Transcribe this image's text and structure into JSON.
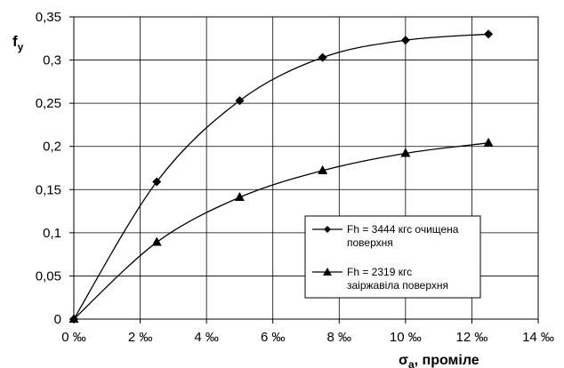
{
  "chart_data": {
    "type": "line",
    "x_tick_labels": [
      "0 ‰",
      "2 ‰",
      "4 ‰",
      "6 ‰",
      "8 ‰",
      "10 ‰",
      "12 ‰",
      "14 ‰"
    ],
    "y_tick_labels": [
      "0",
      "0,05",
      "0,1",
      "0,15",
      "0,2",
      "0,25",
      "0,3",
      "0,35"
    ],
    "xlim": [
      0,
      14
    ],
    "ylim": [
      0,
      0.35
    ],
    "xlabel": {
      "main": "σ",
      "sub": "a",
      "rest": ", проміле"
    },
    "ylabel": {
      "main": "f",
      "sub": "y"
    },
    "grid": true,
    "legend_position": "inside-lower-right",
    "series": [
      {
        "name_lines": [
          "Fh = 3444 кгс очищена",
          "поверхня"
        ],
        "marker": "diamond",
        "color": "#000000",
        "x": [
          0,
          2.5,
          5,
          7.5,
          10,
          12.5
        ],
        "y": [
          0,
          0.159,
          0.253,
          0.303,
          0.323,
          0.33
        ]
      },
      {
        "name_lines": [
          "Fh = 2319 кгс",
          "заіржавіла поверхня"
        ],
        "marker": "triangle",
        "color": "#000000",
        "x": [
          0,
          2.5,
          5,
          7.5,
          10,
          12.5
        ],
        "y": [
          0,
          0.089,
          0.141,
          0.172,
          0.192,
          0.204
        ]
      }
    ]
  }
}
